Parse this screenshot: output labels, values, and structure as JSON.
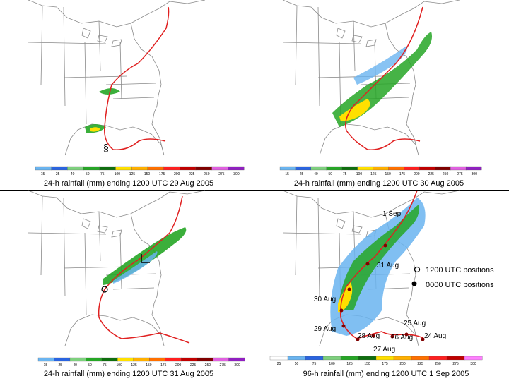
{
  "colors": {
    "track": "#e02020",
    "land_outline": "#7a7a7a",
    "light_blue": "#6ab4f0",
    "mid_blue": "#2a64e0",
    "green": "#26a626",
    "dark_green": "#0f6e0f",
    "yellow": "#ffe000",
    "red": "#d82020",
    "purple": "#9020c0"
  },
  "scale_24h": {
    "ticks": [
      "15",
      "25",
      "40",
      "50",
      "75",
      "100",
      "125",
      "150",
      "175",
      "200",
      "225",
      "250",
      "275",
      "300"
    ],
    "colors": [
      "#6ab4f0",
      "#2a64e0",
      "#7ed07e",
      "#26a626",
      "#0f6e0f",
      "#ffe000",
      "#ffb000",
      "#ff7000",
      "#ff2020",
      "#c00000",
      "#800000",
      "#e060e0",
      "#9020c0"
    ]
  },
  "scale_96h": {
    "ticks": [
      "25",
      "50",
      "75",
      "100",
      "125",
      "150",
      "175",
      "200",
      "225",
      "250",
      "275",
      "300"
    ],
    "colors": [
      "#ffffff",
      "#6ab4f0",
      "#2a64e0",
      "#7ed07e",
      "#26a626",
      "#0f6e0f",
      "#ffe000",
      "#ffb000",
      "#ff7000",
      "#ff2020",
      "#c00000",
      "#ff80ff"
    ]
  },
  "panels": [
    {
      "caption": "24-h rainfall (mm) ending 1200 UTC 29 Aug 2005",
      "scale": "24h"
    },
    {
      "caption": "24-h rainfall (mm) ending 1200 UTC 30 Aug 2005",
      "scale": "24h"
    },
    {
      "caption": "24-h rainfall (mm) ending 1200 UTC 31 Aug 2005",
      "scale": "24h"
    },
    {
      "caption": "96-h rainfall (mm) ending 1200 UTC 1 Sep 2005",
      "scale": "96h"
    }
  ],
  "legend": {
    "open_marker_label": "1200 UTC positions",
    "filled_marker_label": "0000 UTC positions"
  },
  "track_labels": [
    "1 Sep",
    "31 Aug",
    "30 Aug",
    "29 Aug",
    "28 Aug",
    "26 Aug",
    "25 Aug",
    "24 Aug",
    "27 Aug"
  ]
}
